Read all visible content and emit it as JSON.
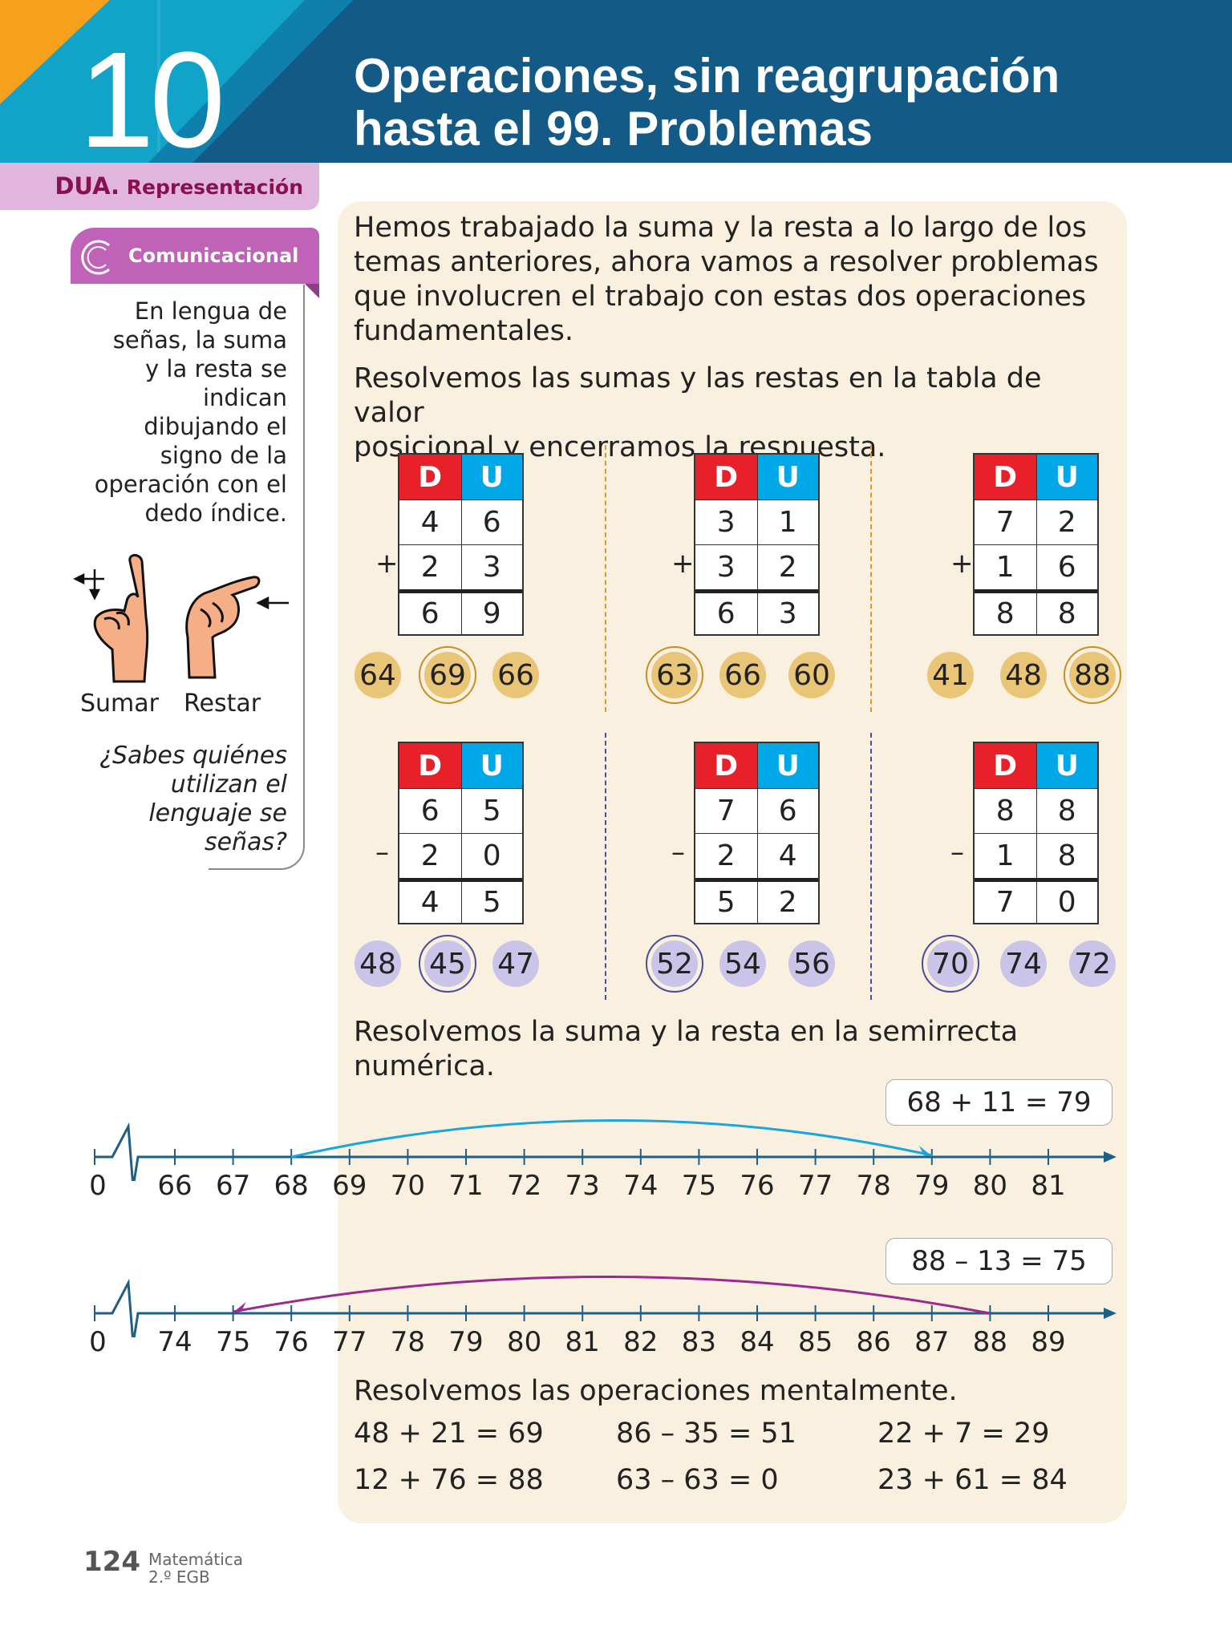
{
  "header": {
    "lesson_number": "10",
    "title_line1": "Operaciones, sin reagrupación",
    "title_line2": "hasta el 99. Problemas"
  },
  "sidebar": {
    "dua_bold": "DUA.",
    "dua_label": "Representación",
    "tab_label": "Comunicacional",
    "text": [
      "En lengua de",
      "señas, la suma",
      "y la resta se",
      "indican",
      "dibujando el",
      "signo de la",
      "operación con el",
      "dedo índice."
    ],
    "sign_add": "Sumar",
    "sign_sub": "Restar",
    "question": [
      "¿Sabes quiénes",
      "utilizan el",
      "lenguaje se",
      "señas?"
    ]
  },
  "main": {
    "intro": [
      "Hemos trabajado la suma y la resta a lo largo de los",
      "temas anteriores, ahora vamos a resolver problemas",
      "que involucren el trabajo con estas dos operaciones",
      "fundamentales."
    ],
    "instruction1": [
      "Resolvemos las sumas y las restas en la tabla de valor",
      "posicional y encerramos la respuesta."
    ],
    "header_d": "D",
    "header_u": "U",
    "exercises": [
      {
        "op": "+",
        "rows": [
          [
            "4",
            "6"
          ],
          [
            "2",
            "3"
          ],
          [
            "6",
            "9"
          ]
        ],
        "options": [
          "64",
          "69",
          "66"
        ],
        "selected": 1
      },
      {
        "op": "+",
        "rows": [
          [
            "3",
            "1"
          ],
          [
            "3",
            "2"
          ],
          [
            "6",
            "3"
          ]
        ],
        "options": [
          "63",
          "66",
          "60"
        ],
        "selected": 0
      },
      {
        "op": "+",
        "rows": [
          [
            "7",
            "2"
          ],
          [
            "1",
            "6"
          ],
          [
            "8",
            "8"
          ]
        ],
        "options": [
          "41",
          "48",
          "88"
        ],
        "selected": 2
      },
      {
        "op": "–",
        "rows": [
          [
            "6",
            "5"
          ],
          [
            "2",
            "0"
          ],
          [
            "4",
            "5"
          ]
        ],
        "options": [
          "48",
          "45",
          "47"
        ],
        "selected": 1
      },
      {
        "op": "–",
        "rows": [
          [
            "7",
            "6"
          ],
          [
            "2",
            "4"
          ],
          [
            "5",
            "2"
          ]
        ],
        "options": [
          "52",
          "54",
          "56"
        ],
        "selected": 0
      },
      {
        "op": "–",
        "rows": [
          [
            "8",
            "8"
          ],
          [
            "1",
            "8"
          ],
          [
            "7",
            "0"
          ]
        ],
        "options": [
          "70",
          "74",
          "72"
        ],
        "selected": 0
      }
    ],
    "instruction2": [
      "Resolvemos la suma y la resta en la semirrecta",
      "numérica."
    ],
    "number_lines": [
      {
        "equation": "68 + 11 = 79",
        "start": 66,
        "end": 81,
        "from": 68,
        "to": 79,
        "color": "#1aa6dc"
      },
      {
        "equation": "88 – 13 = 75",
        "start": 74,
        "end": 89,
        "from": 88,
        "to": 75,
        "color": "#9b2a8e"
      }
    ],
    "instruction3": "Resolvemos las operaciones mentalmente.",
    "mental": [
      [
        "48 + 21 = 69",
        "86 – 35 = 51",
        "22 + 7 = 29"
      ],
      [
        "12 + 76 = 88",
        "63 – 63 = 0",
        "23 + 61 = 84"
      ]
    ]
  },
  "footer": {
    "page": "124",
    "subject": "Matemática",
    "grade": "2.º EGB"
  },
  "colors": {
    "d": "#e8202a",
    "u": "#00a8e8",
    "gold": "#e9c677",
    "gold_ring": "#c98f22",
    "lilac": "#c9c4e8",
    "lilac_ring": "#4b4c9a"
  }
}
